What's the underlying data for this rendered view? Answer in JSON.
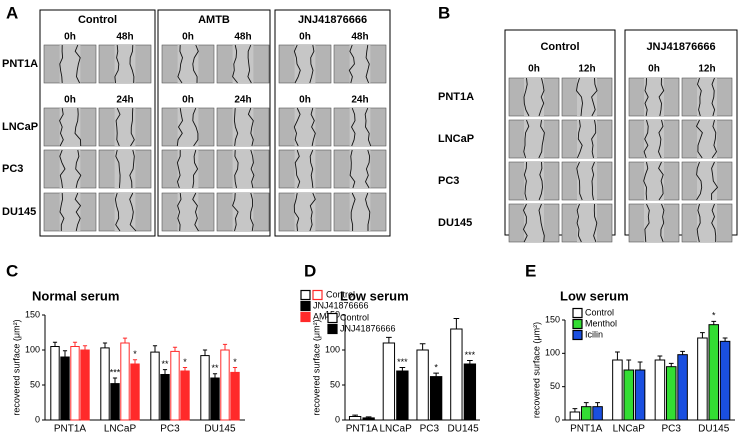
{
  "panels": {
    "A": {
      "letter": "A",
      "rows": [
        "PNT1A",
        "LNCaP",
        "PC3",
        "DU145"
      ],
      "groups": [
        {
          "label": "Control",
          "times_top": [
            "0h",
            "48h"
          ],
          "times_mid": [
            "0h",
            "24h"
          ]
        },
        {
          "label": "AMTB",
          "times_top": [
            "0h",
            "48h"
          ],
          "times_mid": [
            "0h",
            "24h"
          ]
        },
        {
          "label": "JNJ41876666",
          "times_top": [
            "0h",
            "48h"
          ],
          "times_mid": [
            "0h",
            "24h"
          ]
        }
      ]
    },
    "B": {
      "letter": "B",
      "rows": [
        "PNT1A",
        "LNCaP",
        "PC3",
        "DU145"
      ],
      "groups": [
        {
          "label": "Control",
          "times": [
            "0h",
            "12h"
          ]
        },
        {
          "label": "JNJ41876666",
          "times": [
            "0h",
            "12h"
          ]
        }
      ]
    }
  },
  "chart_data": [
    {
      "type": "bar",
      "letter": "C",
      "title": "Normal serum",
      "ylabel": "recovered surface (μm²)",
      "categories": [
        "PNT1A",
        "LNCaP",
        "PC3",
        "DU145"
      ],
      "ylim": [
        0,
        150
      ],
      "yticks": [
        0,
        50,
        100,
        150
      ],
      "series": [
        {
          "name": "Control",
          "color": "#ffffff",
          "edgecolor": "#000000",
          "values": [
            105,
            103,
            97,
            92
          ],
          "errors": [
            6,
            7,
            9,
            8
          ],
          "stars": [
            null,
            null,
            null,
            null
          ]
        },
        {
          "name": "JNJ41876666",
          "color": "#000000",
          "edgecolor": "#000000",
          "values": [
            90,
            52,
            65,
            60
          ],
          "errors": [
            9,
            8,
            7,
            6
          ],
          "stars": [
            null,
            "***",
            "**",
            "**"
          ]
        },
        {
          "color": "#ffffff",
          "edgecolor": "#ff2a2a",
          "values": [
            105,
            110,
            98,
            100
          ],
          "errors": [
            6,
            7,
            6,
            8
          ],
          "stars": [
            null,
            null,
            null,
            null
          ]
        },
        {
          "name": "AMTB",
          "color": "#ff2a2a",
          "edgecolor": "#ff2a2a",
          "values": [
            100,
            80,
            70,
            68
          ],
          "errors": [
            6,
            6,
            5,
            7
          ],
          "stars": [
            null,
            "*",
            "*",
            "*"
          ]
        }
      ]
    },
    {
      "type": "bar",
      "letter": "D",
      "title": "Low serum",
      "ylabel": "recovered surface (μm²)",
      "categories": [
        "PNT1A",
        "LNCaP",
        "PC3",
        "DU145"
      ],
      "ylim": [
        0,
        150
      ],
      "yticks": [
        0,
        50,
        100,
        150
      ],
      "series": [
        {
          "name": "Control",
          "color": "#ffffff",
          "edgecolor": "#000000",
          "values": [
            5,
            110,
            100,
            130
          ],
          "errors": [
            2,
            8,
            9,
            15
          ],
          "stars": [
            null,
            null,
            null,
            null
          ]
        },
        {
          "name": "JNJ41876666",
          "color": "#000000",
          "edgecolor": "#000000",
          "values": [
            3,
            70,
            62,
            80
          ],
          "errors": [
            1.5,
            5,
            5,
            5
          ],
          "stars": [
            null,
            "***",
            "*",
            "***"
          ]
        }
      ]
    },
    {
      "type": "bar",
      "letter": "E",
      "title": "Low serum",
      "ylabel": "recovered surface (μm²)",
      "categories": [
        "PNT1A",
        "LNCaP",
        "PC3",
        "DU145"
      ],
      "ylim": [
        0,
        150
      ],
      "yticks": [
        0,
        50,
        100,
        150
      ],
      "series": [
        {
          "name": "Control",
          "color": "#ffffff",
          "edgecolor": "#000000",
          "values": [
            12,
            90,
            90,
            123
          ],
          "errors": [
            5,
            12,
            6,
            8
          ],
          "stars": [
            null,
            null,
            null,
            null
          ]
        },
        {
          "name": "Menthol",
          "color": "#33dd33",
          "edgecolor": "#000000",
          "values": [
            20,
            75,
            80,
            143
          ],
          "errors": [
            6,
            15,
            5,
            5
          ],
          "stars": [
            null,
            null,
            null,
            "*"
          ]
        },
        {
          "name": "Icilin",
          "color": "#1a4fe0",
          "edgecolor": "#000000",
          "values": [
            20,
            75,
            98,
            118
          ],
          "errors": [
            6,
            12,
            5,
            5
          ],
          "stars": [
            null,
            null,
            null,
            null
          ]
        }
      ]
    }
  ]
}
